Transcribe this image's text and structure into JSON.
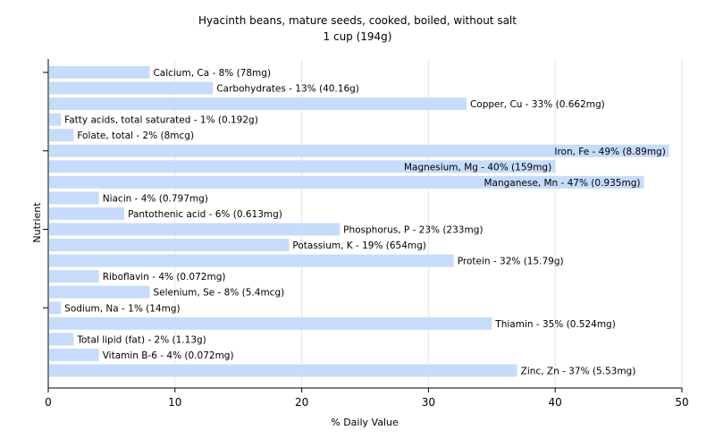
{
  "chart_data": {
    "type": "bar",
    "orientation": "horizontal",
    "title": "Hyacinth beans, mature seeds, cooked, boiled, without salt",
    "subtitle": "1 cup (194g)",
    "xlabel": "% Daily Value",
    "ylabel": "Nutrient",
    "xlim": [
      0,
      50
    ],
    "xticks": [
      "0",
      "10",
      "20",
      "30",
      "40",
      "50"
    ],
    "grid": true,
    "bar_color": "#c6dcfa",
    "categories": [
      "Calcium, Ca",
      "Carbohydrates",
      "Copper, Cu",
      "Fatty acids, total saturated",
      "Folate, total",
      "Iron, Fe",
      "Magnesium, Mg",
      "Manganese, Mn",
      "Niacin",
      "Pantothenic acid",
      "Phosphorus, P",
      "Potassium, K",
      "Protein",
      "Riboflavin",
      "Selenium, Se",
      "Sodium, Na",
      "Thiamin",
      "Total lipid (fat)",
      "Vitamin B-6",
      "Zinc, Zn"
    ],
    "values": [
      8,
      13,
      33,
      1,
      2,
      49,
      40,
      47,
      4,
      6,
      23,
      19,
      32,
      4,
      8,
      1,
      35,
      2,
      4,
      37
    ],
    "labels": [
      "Calcium, Ca - 8% (78mg)",
      "Carbohydrates - 13% (40.16g)",
      "Copper, Cu - 33% (0.662mg)",
      "Fatty acids, total saturated - 1% (0.192g)",
      "Folate, total - 2% (8mcg)",
      "Iron, Fe - 49% (8.89mg)",
      "Magnesium, Mg - 40% (159mg)",
      "Manganese, Mn - 47% (0.935mg)",
      "Niacin - 4% (0.797mg)",
      "Pantothenic acid - 6% (0.613mg)",
      "Phosphorus, P - 23% (233mg)",
      "Potassium, K - 19% (654mg)",
      "Protein - 32% (15.79g)",
      "Riboflavin - 4% (0.072mg)",
      "Selenium, Se - 8% (5.4mcg)",
      "Sodium, Na - 1% (14mg)",
      "Thiamin - 35% (0.524mg)",
      "Total lipid (fat) - 2% (1.13g)",
      "Vitamin B-6 - 4% (0.072mg)",
      "Zinc, Zn - 37% (5.53mg)"
    ]
  }
}
